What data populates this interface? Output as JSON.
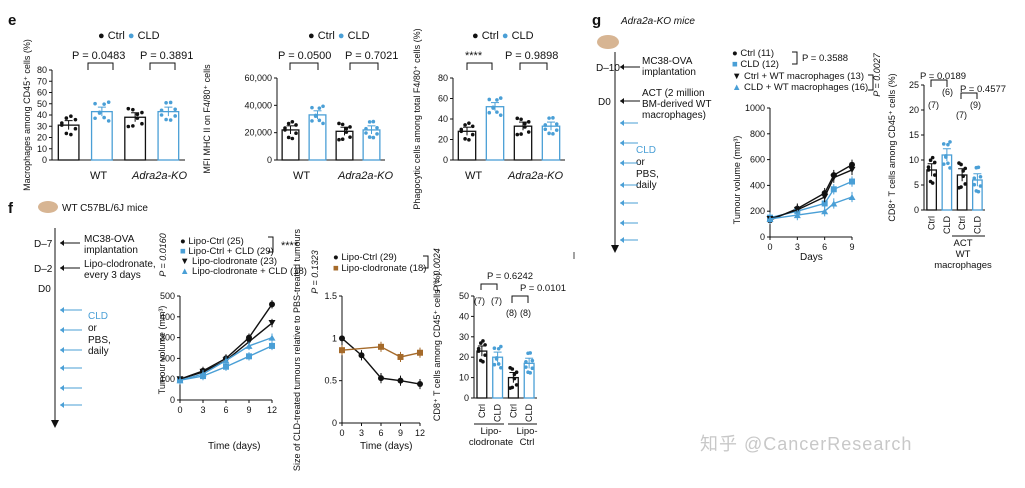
{
  "panels": {
    "e": {
      "letter": "e",
      "legend": {
        "ctrl": "Ctrl",
        "cld": "CLD"
      },
      "groups": [
        "WT",
        "Adra2a-KO"
      ],
      "plot1": {
        "ylabel": "Macrophages among CD45⁺ cells (%)",
        "p1": "P = 0.0483",
        "p2": "P = 0.3891"
      },
      "plot2": {
        "ylabel": "MFI MHC II on F4/80⁺ cells",
        "p1": "P = 0.0500",
        "p2": "P = 0.7021"
      },
      "plot3": {
        "ylabel": "Phagocytic cells among total F4/80⁺ cells (%)",
        "p1": "****",
        "p2": "P = 0.9898"
      }
    },
    "f": {
      "letter": "f",
      "mouse": "WT C57BL/6J mice",
      "timeline": {
        "d7": "D–7",
        "d7_text": "MC38-OVA implantation",
        "d2": "D–2",
        "d2_text": "Lipo-clodronate, every 3 days",
        "d0": "D0",
        "cld": "CLD",
        "or": "or",
        "pbs": "PBS, daily"
      },
      "legend1": [
        "Lipo-Ctrl (25)",
        "Lipo-Ctrl + CLD (29)",
        "Lipo-clodronate (23)",
        "Lipo-clodronate + CLD (18)"
      ],
      "p_left": "P = 0.0160",
      "p_sig": "****",
      "legend2": [
        "Lipo-Ctrl (29)",
        "Lipo-clodronate (18)"
      ],
      "p_mid1": "P = 0.1323",
      "p_mid2": "P = 0.0024",
      "ylabel1": "Tumour volume (mm³)",
      "xlabel1": "Time (days)",
      "ylabel2": "Size of CLD-treated tumours relative to PBS-treated tumours",
      "xlabel2": "Time (days)",
      "ylabel3": "CD8⁺ T cells among CD45⁺ cells (%)",
      "p_r1": "P = 0.6242",
      "p_r2": "P = 0.0101",
      "n_labels": [
        "(7)",
        "(7)",
        "(8)",
        "(8)"
      ],
      "xcats": [
        "Ctrl",
        "CLD",
        "Ctrl",
        "CLD"
      ],
      "groups": [
        "Lipo-clodronate",
        "Lipo-Ctrl"
      ]
    },
    "g": {
      "letter": "g",
      "mouse": "Adra2a-KO mice",
      "timeline": {
        "d10": "D–10",
        "d10_text": "MC38-OVA implantation",
        "d0": "D0",
        "d0_text": "ACT (2 million BM-derived WT macrophages)",
        "cld": "CLD",
        "or": "or",
        "pbs": "PBS, daily"
      },
      "legend": [
        "Ctrl (11)",
        "CLD (12)",
        "Ctrl + WT macrophages (13)",
        "CLD + WT macrophages (16)"
      ],
      "p1": "P = 0.3588",
      "p2": "P = 0.0027",
      "ylabel1": "Tumour volume (mm³)",
      "xlabel1": "Days",
      "ylabel2": "CD8⁺ T cells among CD45⁺ cells (%)",
      "p_r1": "P = 0.0189",
      "p_r2": "P = 0.4577",
      "n_labels": [
        "(7)",
        "(6)",
        "(7)",
        "(9)"
      ],
      "xcats": [
        "Ctrl",
        "CLD",
        "Ctrl",
        "CLD"
      ],
      "group": "ACT WT macrophages"
    }
  },
  "watermark": "知乎 @CancerResearch",
  "colors": {
    "ctrl": "#111111",
    "cld": "#4a9fd6",
    "brown": "#a56a2a"
  },
  "chart_data": [
    {
      "type": "bar",
      "id": "e1",
      "categories": [
        "WT Ctrl",
        "WT CLD",
        "Adra2a-KO Ctrl",
        "Adra2a-KO CLD"
      ],
      "values": [
        31,
        43,
        38,
        43
      ],
      "ylim": [
        0,
        80
      ],
      "yticks": [
        0,
        10,
        20,
        30,
        40,
        50,
        60,
        70,
        80
      ]
    },
    {
      "type": "bar",
      "id": "e2",
      "categories": [
        "WT Ctrl",
        "WT CLD",
        "Adra2a-KO Ctrl",
        "Adra2a-KO CLD"
      ],
      "values": [
        22000,
        33000,
        21000,
        22000
      ],
      "ylim": [
        0,
        60000
      ],
      "yticks": [
        "0",
        "20,000",
        "40,000",
        "60,000"
      ]
    },
    {
      "type": "bar",
      "id": "e3",
      "categories": [
        "WT Ctrl",
        "WT CLD",
        "Adra2a-KO Ctrl",
        "Adra2a-KO CLD"
      ],
      "values": [
        28,
        52,
        33,
        33
      ],
      "ylim": [
        0,
        80
      ],
      "yticks": [
        0,
        20,
        40,
        60,
        80
      ]
    },
    {
      "type": "line",
      "id": "f1",
      "x": [
        0,
        3,
        6,
        9,
        12
      ],
      "xlim": [
        0,
        12
      ],
      "ylim": [
        0,
        500
      ],
      "yticks": [
        0,
        100,
        200,
        300,
        400,
        500
      ],
      "series": [
        {
          "name": "Lipo-Ctrl (25)",
          "values": [
            100,
            140,
            200,
            300,
            460
          ]
        },
        {
          "name": "Lipo-Ctrl + CLD (29)",
          "values": [
            95,
            115,
            160,
            210,
            260
          ]
        },
        {
          "name": "Lipo-clodronate (23)",
          "values": [
            100,
            135,
            190,
            280,
            370
          ]
        },
        {
          "name": "Lipo-clodronate + CLD (18)",
          "values": [
            95,
            125,
            190,
            260,
            300
          ]
        }
      ]
    },
    {
      "type": "line",
      "id": "f2",
      "x": [
        0,
        3,
        6,
        9,
        12
      ],
      "xlim": [
        0,
        12
      ],
      "ylim": [
        0,
        1.5
      ],
      "yticks": [
        0,
        0.5,
        1.0,
        1.5
      ],
      "series": [
        {
          "name": "Lipo-Ctrl (29)",
          "values": [
            1.0,
            0.8,
            0.53,
            0.5,
            0.46
          ]
        },
        {
          "name": "Lipo-clodronate (18)",
          "values": [
            0.86,
            null,
            0.9,
            0.78,
            0.83
          ]
        }
      ]
    },
    {
      "type": "bar",
      "id": "f3",
      "categories": [
        "Lipo-clodronate Ctrl",
        "Lipo-clodronate CLD",
        "Lipo-Ctrl Ctrl",
        "Lipo-Ctrl CLD"
      ],
      "values": [
        23,
        20,
        10,
        17
      ],
      "ylim": [
        0,
        50
      ],
      "yticks": [
        0,
        10,
        20,
        30,
        40,
        50
      ]
    },
    {
      "type": "line",
      "id": "g1",
      "x": [
        0,
        3,
        6,
        7,
        9
      ],
      "xlim": [
        0,
        9
      ],
      "ylim": [
        0,
        1000
      ],
      "yticks": [
        0,
        200,
        400,
        600,
        800,
        1000
      ],
      "series": [
        {
          "name": "Ctrl (11)",
          "values": [
            130,
            220,
            340,
            480,
            560
          ]
        },
        {
          "name": "CLD (12)",
          "values": [
            150,
            200,
            260,
            370,
            430
          ]
        },
        {
          "name": "Ctrl + WT macrophages (13)",
          "values": [
            140,
            210,
            310,
            460,
            520
          ]
        },
        {
          "name": "CLD + WT macrophages (16)",
          "values": [
            140,
            170,
            200,
            260,
            310
          ]
        }
      ]
    },
    {
      "type": "bar",
      "id": "g2",
      "categories": [
        "Ctrl",
        "CLD",
        "ACT Ctrl",
        "ACT CLD"
      ],
      "values": [
        8,
        11,
        7,
        6
      ],
      "ylim": [
        0,
        25
      ],
      "yticks": [
        0,
        5,
        10,
        15,
        20,
        25
      ]
    }
  ]
}
